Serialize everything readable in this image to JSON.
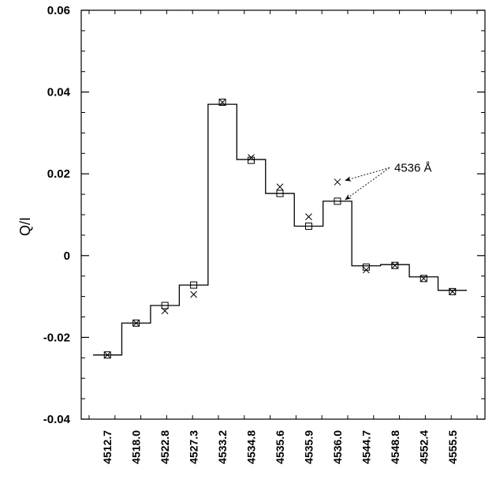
{
  "chart_data": {
    "type": "line",
    "title": "",
    "xlabel": "",
    "ylabel": "Q/I",
    "ylim": [
      -0.04,
      0.06
    ],
    "yticks": [
      -0.04,
      -0.02,
      0,
      0.02,
      0.04,
      0.06
    ],
    "ytick_labels": [
      "-0.04",
      "-0.02",
      "0",
      "0.02",
      "0.04",
      "0.06"
    ],
    "categories": [
      "4512.7",
      "4518.0",
      "4522.8",
      "4527.3",
      "4533.2",
      "4534.8",
      "4535.6",
      "4535.9",
      "4536.0",
      "4544.7",
      "4548.8",
      "4552.4",
      "4555.5"
    ],
    "grid": false,
    "series": [
      {
        "marker": "square",
        "values": [
          -0.0243,
          -0.0165,
          -0.0122,
          -0.0072,
          0.0375,
          0.0233,
          0.0152,
          0.0072,
          0.0133,
          -0.0028,
          -0.0024,
          -0.0056,
          -0.0088
        ]
      },
      {
        "marker": "x",
        "values": [
          -0.0243,
          -0.0165,
          -0.0135,
          -0.0095,
          0.0375,
          0.024,
          0.0168,
          0.0095,
          0.018,
          -0.0035,
          -0.0024,
          -0.0056,
          -0.0088
        ]
      },
      {
        "marker": "none",
        "style": "step",
        "values": [
          -0.0243,
          -0.0165,
          -0.0122,
          -0.0072,
          0.037,
          0.0235,
          0.0152,
          0.0072,
          0.0133,
          -0.0025,
          -0.0022,
          -0.0052,
          -0.0085
        ]
      }
    ],
    "annotations": [
      {
        "text": "4536 Å",
        "target_category": "4536.0",
        "targets": [
          0.018,
          0.0133
        ]
      }
    ]
  }
}
